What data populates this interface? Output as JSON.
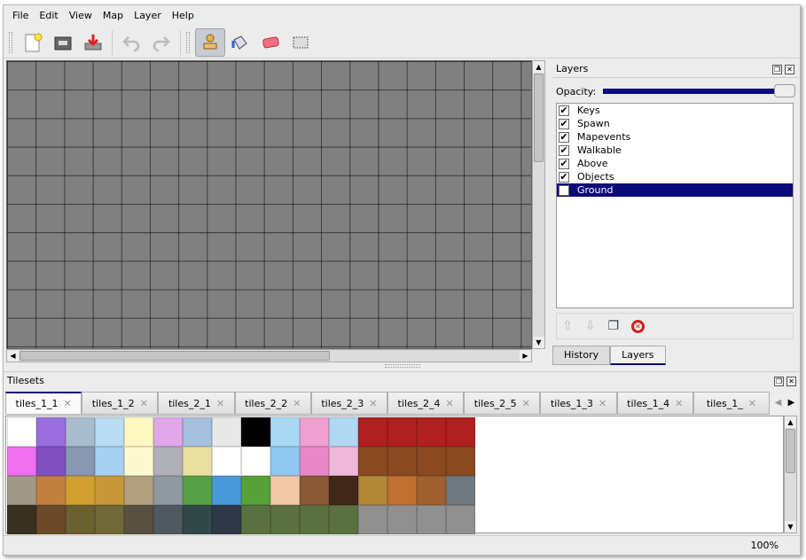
{
  "menu": [
    "File",
    "Edit",
    "View",
    "Map",
    "Layer",
    "Help"
  ],
  "toolbar": {
    "icons": [
      "new-file-icon",
      "open-folder-icon",
      "save-icon",
      "undo-icon",
      "redo-icon",
      "stamp-brush-icon",
      "bucket-fill-icon",
      "eraser-icon",
      "rect-select-icon"
    ],
    "active": "stamp-brush-icon"
  },
  "layers_panel": {
    "title": "Layers",
    "opacity_label": "Opacity:",
    "opacity": 1.0,
    "layers": [
      {
        "name": "Keys",
        "visible": true
      },
      {
        "name": "Spawn",
        "visible": true
      },
      {
        "name": "Mapevents",
        "visible": true
      },
      {
        "name": "Walkable",
        "visible": true
      },
      {
        "name": "Above",
        "visible": true
      },
      {
        "name": "Objects",
        "visible": true
      },
      {
        "name": "Ground",
        "visible": true,
        "selected": true
      }
    ],
    "check": "✔",
    "tabs": [
      "History",
      "Layers"
    ],
    "active_tab": "Layers"
  },
  "tilesets": {
    "title": "Tilesets",
    "tabs": [
      "tiles_1_1",
      "tiles_1_2",
      "tiles_2_1",
      "tiles_2_2",
      "tiles_2_3",
      "tiles_2_4",
      "tiles_2_5",
      "tiles_1_3",
      "tiles_1_4",
      "tiles_1_"
    ],
    "active_tab": "tiles_1_1",
    "close_glyph": "✕"
  },
  "status": {
    "zoom": "100%"
  },
  "colors": {
    "selection": "#0a0a7a",
    "map_bg": "#808080"
  }
}
